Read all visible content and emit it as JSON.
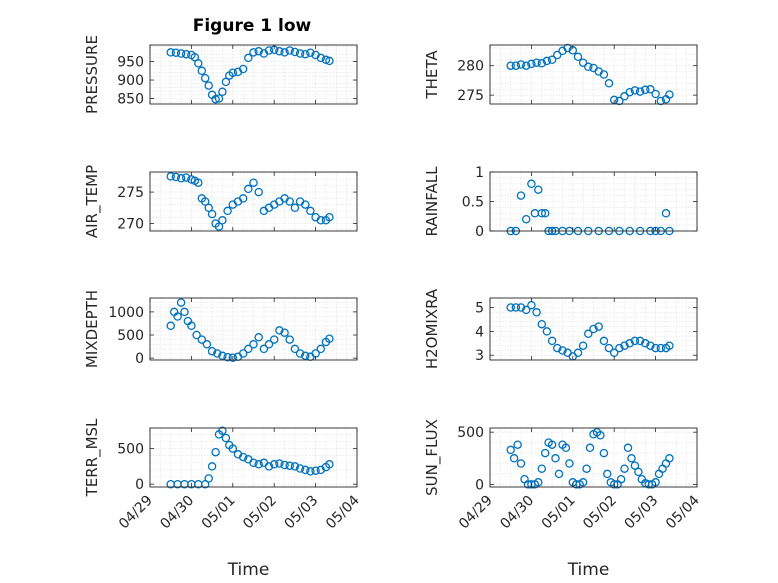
{
  "figure_title": "Figure 1 low",
  "colors": {
    "marker": "#0072BD",
    "axis": "#262626",
    "grid": "#dfdfdf"
  },
  "chart_data": [
    {
      "type": "scatter",
      "ylabel": "PRESSURE",
      "title": "Figure 1 low",
      "xlim": [
        "04/29",
        "05/04"
      ],
      "ylim": [
        835,
        995
      ],
      "yticks": [
        850,
        900,
        950
      ],
      "ytick_labels": [
        "850",
        "900",
        "950"
      ],
      "xtick_labels": [],
      "grid": true,
      "x": [
        "04/29 12:00",
        "04/29 15:00",
        "04/29 18:00",
        "04/29 21:00",
        "04/30 00:00",
        "04/30 02:00",
        "04/30 04:00",
        "04/30 06:00",
        "04/30 08:00",
        "04/30 10:00",
        "04/30 12:00",
        "04/30 14:00",
        "04/30 16:00",
        "04/30 18:00",
        "04/30 20:00",
        "04/30 22:00",
        "05/01 00:00",
        "05/01 03:00",
        "05/01 06:00",
        "05/01 09:00",
        "05/01 12:00",
        "05/01 15:00",
        "05/01 18:00",
        "05/01 21:00",
        "05/02 00:00",
        "05/02 03:00",
        "05/02 06:00",
        "05/02 09:00",
        "05/02 12:00",
        "05/02 15:00",
        "05/02 18:00",
        "05/02 21:00",
        "05/03 00:00",
        "05/03 03:00",
        "05/03 06:00",
        "05/03 08:00"
      ],
      "y": [
        975,
        974,
        972,
        970,
        968,
        962,
        945,
        925,
        905,
        885,
        860,
        848,
        850,
        868,
        895,
        912,
        920,
        922,
        930,
        960,
        975,
        978,
        972,
        980,
        982,
        978,
        975,
        980,
        976,
        972,
        970,
        974,
        968,
        960,
        955,
        952
      ]
    },
    {
      "type": "scatter",
      "ylabel": "THETA",
      "xlim": [
        "04/29",
        "05/04"
      ],
      "ylim": [
        273.5,
        283.5
      ],
      "yticks": [
        275,
        280
      ],
      "ytick_labels": [
        "275",
        "280"
      ],
      "xtick_labels": [],
      "grid": true,
      "x": [
        "04/29 12:00",
        "04/29 15:00",
        "04/29 18:00",
        "04/29 21:00",
        "04/30 00:00",
        "04/30 03:00",
        "04/30 06:00",
        "04/30 09:00",
        "04/30 12:00",
        "04/30 15:00",
        "04/30 18:00",
        "04/30 21:00",
        "05/01 00:00",
        "05/01 03:00",
        "05/01 06:00",
        "05/01 09:00",
        "05/01 12:00",
        "05/01 15:00",
        "05/01 18:00",
        "05/01 21:00",
        "05/02 00:00",
        "05/02 03:00",
        "05/02 06:00",
        "05/02 09:00",
        "05/02 12:00",
        "05/02 15:00",
        "05/02 18:00",
        "05/02 21:00",
        "05/03 00:00",
        "05/03 03:00",
        "05/03 06:00",
        "05/03 08:00"
      ],
      "y": [
        280.0,
        280.0,
        280.2,
        280.0,
        280.3,
        280.5,
        280.4,
        280.8,
        281.0,
        281.8,
        282.5,
        283.0,
        282.6,
        281.5,
        280.5,
        279.8,
        279.6,
        279.0,
        278.5,
        277.0,
        274.2,
        274.0,
        274.8,
        275.5,
        275.8,
        275.6,
        275.9,
        276.0,
        275.2,
        274.0,
        274.3,
        275.1
      ]
    },
    {
      "type": "scatter",
      "ylabel": "AIR_TEMP",
      "xlim": [
        "04/29",
        "05/04"
      ],
      "ylim": [
        268.8,
        278.2
      ],
      "yticks": [
        270,
        275
      ],
      "ytick_labels": [
        "270",
        "275"
      ],
      "xtick_labels": [],
      "grid": true,
      "x": [
        "04/29 12:00",
        "04/29 15:00",
        "04/29 18:00",
        "04/29 21:00",
        "04/30 00:00",
        "04/30 02:00",
        "04/30 04:00",
        "04/30 06:00",
        "04/30 08:00",
        "04/30 10:00",
        "04/30 12:00",
        "04/30 14:00",
        "04/30 16:00",
        "04/30 18:00",
        "04/30 21:00",
        "05/01 00:00",
        "05/01 03:00",
        "05/01 06:00",
        "05/01 09:00",
        "05/01 12:00",
        "05/01 15:00",
        "05/01 18:00",
        "05/01 21:00",
        "05/02 00:00",
        "05/02 03:00",
        "05/02 06:00",
        "05/02 09:00",
        "05/02 12:00",
        "05/02 15:00",
        "05/02 18:00",
        "05/02 21:00",
        "05/03 00:00",
        "05/03 03:00",
        "05/03 06:00",
        "05/03 08:00"
      ],
      "y": [
        277.5,
        277.4,
        277.2,
        277.3,
        277.0,
        276.8,
        276.5,
        274.0,
        273.5,
        272.5,
        271.5,
        270.0,
        269.5,
        270.5,
        272.0,
        273.0,
        273.5,
        274.0,
        275.5,
        276.5,
        275.0,
        272.0,
        272.5,
        273.0,
        273.5,
        274.0,
        273.5,
        272.5,
        273.5,
        273.0,
        272.0,
        271.0,
        270.5,
        270.5,
        271.0
      ]
    },
    {
      "type": "scatter",
      "ylabel": "RAINFALL",
      "xlim": [
        "04/29",
        "05/04"
      ],
      "ylim": [
        0,
        1
      ],
      "yticks": [
        0,
        0.5,
        1
      ],
      "ytick_labels": [
        "0",
        "0.5",
        "1"
      ],
      "xtick_labels": [],
      "grid": true,
      "x": [
        "04/29 12:00",
        "04/29 15:00",
        "04/29 18:00",
        "04/29 21:00",
        "04/30 00:00",
        "04/30 02:00",
        "04/30 04:00",
        "04/30 06:00",
        "04/30 08:00",
        "04/30 10:00",
        "04/30 12:00",
        "04/30 14:00",
        "04/30 18:00",
        "04/30 22:00",
        "05/01 03:00",
        "05/01 09:00",
        "05/01 15:00",
        "05/01 21:00",
        "05/02 03:00",
        "05/02 09:00",
        "05/02 15:00",
        "05/02 21:00",
        "05/03 00:00",
        "05/03 03:00",
        "05/03 06:00",
        "05/03 08:00"
      ],
      "y": [
        0,
        0,
        0.6,
        0.2,
        0.8,
        0.3,
        0.7,
        0.3,
        0.3,
        0,
        0,
        0,
        0,
        0,
        0,
        0,
        0,
        0,
        0,
        0,
        0,
        0,
        0,
        0,
        0.3,
        0
      ]
    },
    {
      "type": "scatter",
      "ylabel": "MIXDEPTH",
      "xlim": [
        "04/29",
        "05/04"
      ],
      "ylim": [
        -40,
        1300
      ],
      "yticks": [
        0,
        500,
        1000
      ],
      "ytick_labels": [
        "0",
        "500",
        "1000"
      ],
      "xtick_labels": [],
      "grid": true,
      "x": [
        "04/29 12:00",
        "04/29 14:00",
        "04/29 16:00",
        "04/29 18:00",
        "04/29 20:00",
        "04/29 22:00",
        "04/30 00:00",
        "04/30 03:00",
        "04/30 06:00",
        "04/30 09:00",
        "04/30 12:00",
        "04/30 15:00",
        "04/30 18:00",
        "04/30 21:00",
        "05/01 00:00",
        "05/01 03:00",
        "05/01 06:00",
        "05/01 09:00",
        "05/01 12:00",
        "05/01 15:00",
        "05/01 18:00",
        "05/01 21:00",
        "05/02 00:00",
        "05/02 03:00",
        "05/02 06:00",
        "05/02 09:00",
        "05/02 12:00",
        "05/02 15:00",
        "05/02 18:00",
        "05/02 21:00",
        "05/03 00:00",
        "05/03 03:00",
        "05/03 06:00",
        "05/03 08:00"
      ],
      "y": [
        700,
        1000,
        900,
        1200,
        1000,
        800,
        700,
        500,
        400,
        300,
        150,
        100,
        50,
        20,
        10,
        30,
        100,
        200,
        300,
        450,
        200,
        300,
        400,
        600,
        550,
        400,
        200,
        100,
        50,
        30,
        100,
        200,
        350,
        420
      ]
    },
    {
      "type": "scatter",
      "ylabel": "H2OMIXRA",
      "xlim": [
        "04/29",
        "05/04"
      ],
      "ylim": [
        2.8,
        5.4
      ],
      "yticks": [
        3,
        4,
        5
      ],
      "ytick_labels": [
        "3",
        "4",
        "5"
      ],
      "xtick_labels": [],
      "grid": true,
      "x": [
        "04/29 12:00",
        "04/29 15:00",
        "04/29 18:00",
        "04/29 21:00",
        "04/30 00:00",
        "04/30 03:00",
        "04/30 06:00",
        "04/30 09:00",
        "04/30 12:00",
        "04/30 15:00",
        "04/30 18:00",
        "04/30 21:00",
        "05/01 00:00",
        "05/01 03:00",
        "05/01 06:00",
        "05/01 09:00",
        "05/01 12:00",
        "05/01 15:00",
        "05/01 18:00",
        "05/01 21:00",
        "05/02 00:00",
        "05/02 03:00",
        "05/02 06:00",
        "05/02 09:00",
        "05/02 12:00",
        "05/02 15:00",
        "05/02 18:00",
        "05/02 21:00",
        "05/03 00:00",
        "05/03 03:00",
        "05/03 06:00",
        "05/03 08:00"
      ],
      "y": [
        5.0,
        5.0,
        5.0,
        4.9,
        5.1,
        4.8,
        4.3,
        4.0,
        3.6,
        3.3,
        3.2,
        3.1,
        2.95,
        3.1,
        3.4,
        3.9,
        4.1,
        4.2,
        3.6,
        3.3,
        3.1,
        3.3,
        3.4,
        3.5,
        3.6,
        3.6,
        3.5,
        3.4,
        3.3,
        3.3,
        3.3,
        3.4
      ]
    },
    {
      "type": "scatter",
      "ylabel": "TERR_MSL",
      "xlim": [
        "04/29",
        "05/04"
      ],
      "ylim": [
        -40,
        790
      ],
      "yticks": [
        0,
        500
      ],
      "ytick_labels": [
        "0",
        "500"
      ],
      "xtick_labels": [
        "04/29",
        "04/30",
        "05/01",
        "05/02",
        "05/03",
        "05/04"
      ],
      "xlabel": "Time",
      "grid": true,
      "x": [
        "04/29 12:00",
        "04/29 16:00",
        "04/29 20:00",
        "04/30 00:00",
        "04/30 04:00",
        "04/30 08:00",
        "04/30 10:00",
        "04/30 12:00",
        "04/30 14:00",
        "04/30 16:00",
        "04/30 18:00",
        "04/30 20:00",
        "04/30 22:00",
        "05/01 00:00",
        "05/01 03:00",
        "05/01 06:00",
        "05/01 09:00",
        "05/01 12:00",
        "05/01 15:00",
        "05/01 18:00",
        "05/01 21:00",
        "05/02 00:00",
        "05/02 03:00",
        "05/02 06:00",
        "05/02 09:00",
        "05/02 12:00",
        "05/02 15:00",
        "05/02 18:00",
        "05/02 21:00",
        "05/03 00:00",
        "05/03 03:00",
        "05/03 06:00",
        "05/03 08:00"
      ],
      "y": [
        0,
        0,
        0,
        0,
        0,
        0,
        80,
        250,
        450,
        700,
        750,
        650,
        550,
        500,
        420,
        380,
        350,
        300,
        280,
        300,
        250,
        280,
        290,
        270,
        260,
        250,
        220,
        200,
        180,
        190,
        200,
        240,
        280
      ]
    },
    {
      "type": "scatter",
      "ylabel": "SUN_FLUX",
      "xlim": [
        "04/29",
        "05/04"
      ],
      "ylim": [
        -25,
        540
      ],
      "yticks": [
        0,
        500
      ],
      "ytick_labels": [
        "0",
        "500"
      ],
      "xtick_labels": [
        "04/29",
        "04/30",
        "05/01",
        "05/02",
        "05/03",
        "05/04"
      ],
      "xlabel": "Time",
      "grid": true,
      "x": [
        "04/29 12:00",
        "04/29 14:00",
        "04/29 16:00",
        "04/29 18:00",
        "04/29 20:00",
        "04/29 22:00",
        "04/30 00:00",
        "04/30 02:00",
        "04/30 04:00",
        "04/30 06:00",
        "04/30 08:00",
        "04/30 10:00",
        "04/30 12:00",
        "04/30 14:00",
        "04/30 16:00",
        "04/30 18:00",
        "04/30 20:00",
        "04/30 22:00",
        "05/01 00:00",
        "05/01 02:00",
        "05/01 04:00",
        "05/01 06:00",
        "05/01 08:00",
        "05/01 10:00",
        "05/01 12:00",
        "05/01 14:00",
        "05/01 16:00",
        "05/01 18:00",
        "05/01 20:00",
        "05/01 22:00",
        "05/02 00:00",
        "05/02 02:00",
        "05/02 04:00",
        "05/02 06:00",
        "05/02 08:00",
        "05/02 10:00",
        "05/02 12:00",
        "05/02 14:00",
        "05/02 16:00",
        "05/02 18:00",
        "05/02 20:00",
        "05/02 22:00",
        "05/03 00:00",
        "05/03 02:00",
        "05/03 04:00",
        "05/03 06:00",
        "05/03 08:00"
      ],
      "y": [
        330,
        250,
        380,
        200,
        50,
        0,
        0,
        0,
        20,
        150,
        300,
        400,
        380,
        250,
        100,
        380,
        350,
        200,
        20,
        0,
        0,
        20,
        150,
        350,
        480,
        500,
        470,
        300,
        100,
        20,
        0,
        0,
        50,
        150,
        350,
        250,
        180,
        120,
        50,
        10,
        0,
        0,
        20,
        100,
        150,
        200,
        250
      ]
    }
  ]
}
